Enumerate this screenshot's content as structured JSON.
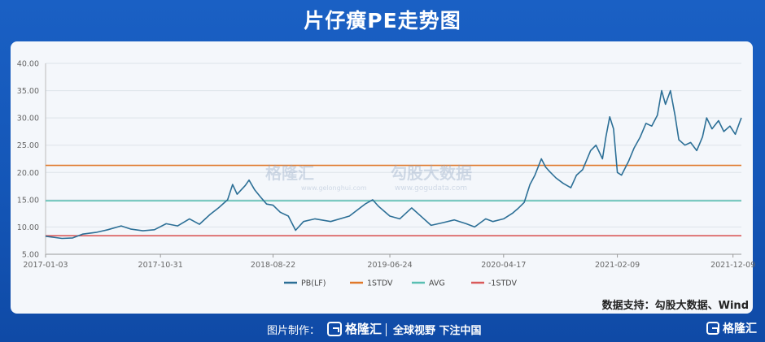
{
  "header": {
    "title": "片仔癀PE走势图"
  },
  "watermark": {
    "brand1": "格隆汇",
    "url1": "www.gelonghui.com",
    "brand2": "勾股大数据",
    "url2": "www.gogudata.com"
  },
  "source": "数据支持：勾股大数据、Wind",
  "footer": {
    "made_by": "图片制作：",
    "logo": "格隆汇",
    "slogan": "全球视野 下注中国",
    "brand": "格隆汇"
  },
  "chart_data": {
    "type": "line",
    "ylim": [
      5,
      40
    ],
    "yticks": [
      "5.00",
      "10.00",
      "15.00",
      "20.00",
      "25.00",
      "30.00",
      "35.00",
      "40.00"
    ],
    "xticks": [
      "2017-01-03",
      "2017-10-31",
      "2018-08-22",
      "2019-06-24",
      "2020-04-17",
      "2021-02-09",
      "2021-12-09"
    ],
    "xrange": [
      "2017-01-03",
      "2021-12-31"
    ],
    "grid": true,
    "legend_position": "bottom",
    "series": [
      {
        "name": "PB(LF)",
        "color": "#2c6f96",
        "points": [
          [
            "2017-01-03",
            8.3
          ],
          [
            "2017-02-15",
            7.9
          ],
          [
            "2017-03-15",
            8.0
          ],
          [
            "2017-04-10",
            8.7
          ],
          [
            "2017-05-15",
            9.0
          ],
          [
            "2017-06-15",
            9.5
          ],
          [
            "2017-07-20",
            10.2
          ],
          [
            "2017-08-15",
            9.6
          ],
          [
            "2017-09-15",
            9.3
          ],
          [
            "2017-10-15",
            9.5
          ],
          [
            "2017-11-15",
            10.6
          ],
          [
            "2017-12-15",
            10.2
          ],
          [
            "2018-01-15",
            11.5
          ],
          [
            "2018-02-10",
            10.5
          ],
          [
            "2018-03-10",
            12.3
          ],
          [
            "2018-04-01",
            13.5
          ],
          [
            "2018-04-25",
            15.0
          ],
          [
            "2018-05-08",
            17.8
          ],
          [
            "2018-05-20",
            16.0
          ],
          [
            "2018-06-10",
            17.6
          ],
          [
            "2018-06-20",
            18.6
          ],
          [
            "2018-07-05",
            16.8
          ],
          [
            "2018-07-20",
            15.5
          ],
          [
            "2018-08-05",
            14.2
          ],
          [
            "2018-08-22",
            14.0
          ],
          [
            "2018-09-10",
            12.7
          ],
          [
            "2018-10-01",
            12.0
          ],
          [
            "2018-10-20",
            9.4
          ],
          [
            "2018-11-10",
            11.0
          ],
          [
            "2018-12-10",
            11.5
          ],
          [
            "2019-01-20",
            11.0
          ],
          [
            "2019-03-10",
            12.0
          ],
          [
            "2019-04-20",
            14.2
          ],
          [
            "2019-05-10",
            15.0
          ],
          [
            "2019-05-25",
            13.8
          ],
          [
            "2019-06-24",
            12.0
          ],
          [
            "2019-07-20",
            11.5
          ],
          [
            "2019-08-20",
            13.5
          ],
          [
            "2019-09-10",
            12.2
          ],
          [
            "2019-10-10",
            10.3
          ],
          [
            "2019-11-10",
            10.8
          ],
          [
            "2019-12-10",
            11.3
          ],
          [
            "2020-01-10",
            10.6
          ],
          [
            "2020-02-01",
            10.0
          ],
          [
            "2020-03-01",
            11.5
          ],
          [
            "2020-03-20",
            11.0
          ],
          [
            "2020-04-17",
            11.5
          ],
          [
            "2020-05-10",
            12.5
          ],
          [
            "2020-05-25",
            13.4
          ],
          [
            "2020-06-10",
            14.5
          ],
          [
            "2020-06-25",
            17.8
          ],
          [
            "2020-07-08",
            19.5
          ],
          [
            "2020-07-25",
            22.5
          ],
          [
            "2020-08-05",
            21.0
          ],
          [
            "2020-08-15",
            20.2
          ],
          [
            "2020-09-01",
            19.0
          ],
          [
            "2020-09-20",
            18.0
          ],
          [
            "2020-10-10",
            17.2
          ],
          [
            "2020-10-25",
            19.5
          ],
          [
            "2020-11-10",
            20.5
          ],
          [
            "2020-12-01",
            24.0
          ],
          [
            "2020-12-15",
            25.0
          ],
          [
            "2021-01-01",
            22.5
          ],
          [
            "2021-01-10",
            26.5
          ],
          [
            "2021-01-20",
            30.2
          ],
          [
            "2021-01-30",
            28.0
          ],
          [
            "2021-02-09",
            20.0
          ],
          [
            "2021-02-20",
            19.5
          ],
          [
            "2021-03-10",
            22.0
          ],
          [
            "2021-03-25",
            24.5
          ],
          [
            "2021-04-10",
            26.5
          ],
          [
            "2021-04-25",
            29.0
          ],
          [
            "2021-05-10",
            28.5
          ],
          [
            "2021-05-25",
            30.5
          ],
          [
            "2021-06-05",
            35.0
          ],
          [
            "2021-06-15",
            32.5
          ],
          [
            "2021-06-28",
            35.0
          ],
          [
            "2021-07-10",
            30.5
          ],
          [
            "2021-07-20",
            26.0
          ],
          [
            "2021-08-05",
            25.0
          ],
          [
            "2021-08-20",
            25.5
          ],
          [
            "2021-09-05",
            24.0
          ],
          [
            "2021-09-20",
            26.5
          ],
          [
            "2021-10-01",
            30.0
          ],
          [
            "2021-10-15",
            28.0
          ],
          [
            "2021-11-01",
            29.5
          ],
          [
            "2021-11-15",
            27.5
          ],
          [
            "2021-12-01",
            28.5
          ],
          [
            "2021-12-15",
            27.0
          ],
          [
            "2021-12-28",
            29.5
          ],
          [
            "2021-12-31",
            30.0
          ]
        ]
      },
      {
        "name": "1STDV",
        "color": "#e0782a",
        "value": 21.3
      },
      {
        "name": "AVG",
        "color": "#59bfb2",
        "value": 14.8
      },
      {
        "name": "-1STDV",
        "color": "#d95a5a",
        "value": 8.4
      }
    ]
  }
}
